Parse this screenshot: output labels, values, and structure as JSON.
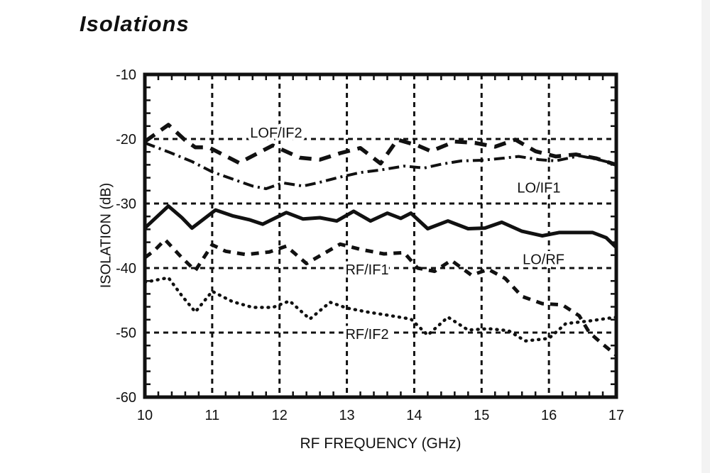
{
  "page": {
    "background": "#ffffff",
    "ink_color": "#111111"
  },
  "chart_data": {
    "type": "line",
    "title": "Isolations",
    "xlabel": "RF FREQUENCY (GHz)",
    "ylabel": "ISOLATION (dB)",
    "xlim": [
      10,
      17
    ],
    "ylim": [
      -60,
      -10
    ],
    "x_ticks": [
      10,
      11,
      12,
      13,
      14,
      15,
      16,
      17
    ],
    "y_ticks": [
      -10,
      -20,
      -30,
      -40,
      -50,
      -60
    ],
    "x_minor_step": 0.2,
    "y_minor_step": 2,
    "grid": "dashed gridlines at every major tick",
    "legend_position": "inline labels next to curves",
    "series": [
      {
        "name": "LOF/IF2",
        "line_style": "bold-dashed",
        "label_x": 11.95,
        "label_y": -19.0,
        "points": [
          [
            10,
            -20.4
          ],
          [
            10.35,
            -17.8
          ],
          [
            10.6,
            -20.2
          ],
          [
            10.75,
            -21.3
          ],
          [
            10.95,
            -21.3
          ],
          [
            11.4,
            -23.7
          ],
          [
            11.9,
            -21.0
          ],
          [
            12.3,
            -22.9
          ],
          [
            12.6,
            -23.2
          ],
          [
            12.9,
            -22.2
          ],
          [
            13.2,
            -21.4
          ],
          [
            13.5,
            -23.8
          ],
          [
            13.75,
            -20.1
          ],
          [
            14.05,
            -21.0
          ],
          [
            14.25,
            -21.9
          ],
          [
            14.6,
            -20.4
          ],
          [
            14.9,
            -20.6
          ],
          [
            15.2,
            -21.2
          ],
          [
            15.5,
            -20.1
          ],
          [
            15.8,
            -21.9
          ],
          [
            16.1,
            -22.7
          ],
          [
            16.4,
            -22.4
          ],
          [
            16.7,
            -23.0
          ],
          [
            17,
            -24.0
          ]
        ]
      },
      {
        "name": "LO/IF1",
        "line_style": "dash-dot",
        "label_x": 15.85,
        "label_y": -27.5,
        "points": [
          [
            10,
            -20.6
          ],
          [
            10.35,
            -22.0
          ],
          [
            10.7,
            -23.5
          ],
          [
            11.0,
            -25.1
          ],
          [
            11.3,
            -26.2
          ],
          [
            11.6,
            -27.3
          ],
          [
            11.8,
            -27.7
          ],
          [
            12.05,
            -26.8
          ],
          [
            12.35,
            -27.3
          ],
          [
            12.6,
            -26.7
          ],
          [
            12.9,
            -25.9
          ],
          [
            13.2,
            -25.2
          ],
          [
            13.5,
            -24.8
          ],
          [
            13.85,
            -24.2
          ],
          [
            14.15,
            -24.5
          ],
          [
            14.4,
            -23.9
          ],
          [
            14.7,
            -23.4
          ],
          [
            15.0,
            -23.3
          ],
          [
            15.3,
            -23.0
          ],
          [
            15.55,
            -22.7
          ],
          [
            15.85,
            -23.2
          ],
          [
            16.1,
            -23.4
          ],
          [
            16.45,
            -22.6
          ],
          [
            16.7,
            -23.1
          ],
          [
            17,
            -23.9
          ]
        ]
      },
      {
        "name": "LO/RF",
        "line_style": "solid",
        "label_x": 15.92,
        "label_y": -38.6,
        "points": [
          [
            10,
            -33.8
          ],
          [
            10.35,
            -30.4
          ],
          [
            10.55,
            -32.2
          ],
          [
            10.7,
            -33.8
          ],
          [
            11.05,
            -31.0
          ],
          [
            11.3,
            -31.9
          ],
          [
            11.55,
            -32.5
          ],
          [
            11.75,
            -33.2
          ],
          [
            12.1,
            -31.4
          ],
          [
            12.35,
            -32.4
          ],
          [
            12.6,
            -32.2
          ],
          [
            12.85,
            -32.7
          ],
          [
            13.1,
            -31.2
          ],
          [
            13.35,
            -32.7
          ],
          [
            13.6,
            -31.5
          ],
          [
            13.8,
            -32.3
          ],
          [
            13.95,
            -31.5
          ],
          [
            14.2,
            -33.9
          ],
          [
            14.5,
            -32.7
          ],
          [
            14.8,
            -33.9
          ],
          [
            15.05,
            -33.8
          ],
          [
            15.3,
            -32.9
          ],
          [
            15.6,
            -34.3
          ],
          [
            15.9,
            -35.0
          ],
          [
            16.15,
            -34.5
          ],
          [
            16.65,
            -34.5
          ],
          [
            16.85,
            -35.3
          ],
          [
            17,
            -36.8
          ]
        ]
      },
      {
        "name": "RF/IF1",
        "line_style": "dashed",
        "label_x": 13.3,
        "label_y": -40.2,
        "points": [
          [
            10,
            -38.4
          ],
          [
            10.15,
            -37.2
          ],
          [
            10.3,
            -35.6
          ],
          [
            10.55,
            -38.4
          ],
          [
            10.75,
            -40.4
          ],
          [
            11.0,
            -36.4
          ],
          [
            11.2,
            -37.4
          ],
          [
            11.5,
            -37.9
          ],
          [
            11.85,
            -37.5
          ],
          [
            12.1,
            -36.6
          ],
          [
            12.4,
            -39.3
          ],
          [
            12.9,
            -36.3
          ],
          [
            13.2,
            -37.1
          ],
          [
            13.55,
            -37.8
          ],
          [
            13.85,
            -37.6
          ],
          [
            14.05,
            -40.0
          ],
          [
            14.3,
            -40.5
          ],
          [
            14.55,
            -38.8
          ],
          [
            14.85,
            -41.1
          ],
          [
            15.1,
            -40.2
          ],
          [
            15.35,
            -41.6
          ],
          [
            15.6,
            -44.4
          ],
          [
            15.9,
            -45.5
          ],
          [
            16.2,
            -45.7
          ],
          [
            16.45,
            -47.4
          ],
          [
            16.6,
            -50.0
          ],
          [
            16.8,
            -51.8
          ],
          [
            17,
            -53.5
          ]
        ]
      },
      {
        "name": "RF/IF2",
        "line_style": "dotted",
        "label_x": 13.3,
        "label_y": -50.2,
        "points": [
          [
            10,
            -42.2
          ],
          [
            10.35,
            -41.5
          ],
          [
            10.55,
            -44.3
          ],
          [
            10.75,
            -46.8
          ],
          [
            11.0,
            -43.6
          ],
          [
            11.3,
            -45.2
          ],
          [
            11.6,
            -46.1
          ],
          [
            11.9,
            -46.1
          ],
          [
            12.15,
            -45.1
          ],
          [
            12.45,
            -47.9
          ],
          [
            12.75,
            -45.3
          ],
          [
            13.0,
            -46.2
          ],
          [
            13.3,
            -46.8
          ],
          [
            13.6,
            -47.3
          ],
          [
            13.95,
            -47.9
          ],
          [
            14.2,
            -50.4
          ],
          [
            14.5,
            -47.6
          ],
          [
            14.8,
            -49.6
          ],
          [
            15.1,
            -49.4
          ],
          [
            15.4,
            -49.7
          ],
          [
            15.65,
            -51.3
          ],
          [
            16.0,
            -50.9
          ],
          [
            16.25,
            -48.6
          ],
          [
            16.6,
            -48.2
          ],
          [
            17,
            -47.6
          ]
        ]
      }
    ]
  }
}
